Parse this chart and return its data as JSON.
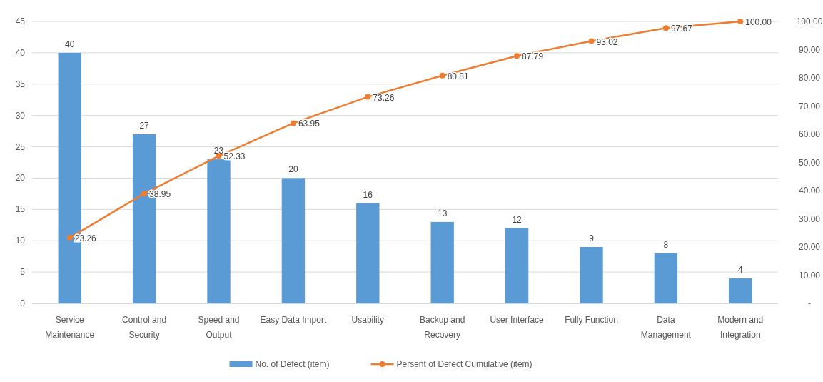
{
  "chart_data": {
    "type": "bar",
    "categories": [
      "Service\nMaintenance",
      "Control and\nSecurity",
      "Speed and\nOutput",
      "Easy Data Import",
      "Usability",
      "Backup and\nRecovery",
      "User Interface",
      "Fully Function",
      "Data\nManagement",
      "Modern and\nIntegration"
    ],
    "series": [
      {
        "name": "No. of Defect (item)",
        "color": "#5b9bd5",
        "values": [
          40,
          27,
          23,
          20,
          16,
          13,
          12,
          9,
          8,
          4
        ],
        "value_labels": [
          "40",
          "27",
          "23",
          "20",
          "16",
          "13",
          "12",
          "9",
          "8",
          "4"
        ]
      },
      {
        "name": "Persent of Defect Cumulative (item)",
        "type": "line",
        "axis": "y2",
        "color": "#ed7d31",
        "marker": "circle",
        "values": [
          23.26,
          38.95,
          52.33,
          63.95,
          73.26,
          80.81,
          87.79,
          93.02,
          97.67,
          100.0
        ],
        "value_labels": [
          "23.26",
          "38.95",
          "52.33",
          "63.95",
          "73.26",
          "80.81",
          "87.79",
          "93.02",
          "97.67",
          "100.00"
        ]
      }
    ],
    "ylim": [
      0,
      45
    ],
    "yticks": [
      0,
      5,
      10,
      15,
      20,
      25,
      30,
      35,
      40,
      45
    ],
    "y2lim": [
      0,
      100
    ],
    "y2ticks": [
      {
        "value": 0,
        "label": "-"
      },
      {
        "value": 10,
        "label": "10.00"
      },
      {
        "value": 20,
        "label": "20.00"
      },
      {
        "value": 30,
        "label": "30.00"
      },
      {
        "value": 40,
        "label": "40.00"
      },
      {
        "value": 50,
        "label": "50.00"
      },
      {
        "value": 60,
        "label": "60.00"
      },
      {
        "value": 70,
        "label": "70.00"
      },
      {
        "value": 80,
        "label": "80.00"
      },
      {
        "value": 90,
        "label": "90.00"
      },
      {
        "value": 100,
        "label": "100.00"
      }
    ],
    "grid": "y",
    "legend": "bottom"
  }
}
